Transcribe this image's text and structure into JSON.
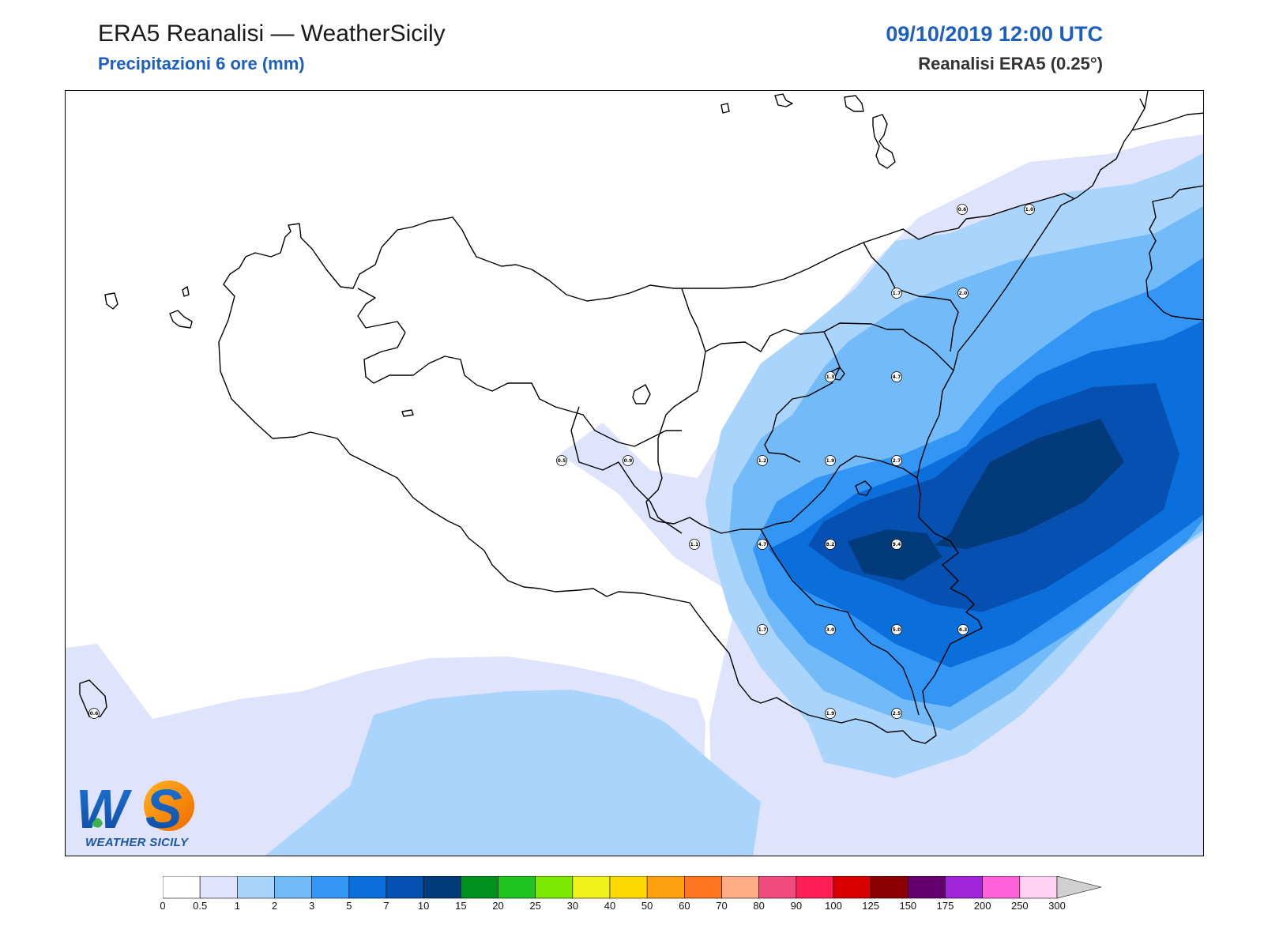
{
  "header": {
    "title": "ERA5 Reanalisi — WeatherSicily",
    "subtitle": "Precipitazioni 6 ore (mm)",
    "datetime": "09/10/2019 12:00 UTC",
    "model": "Reanalisi ERA5 (0.25°)"
  },
  "logo": {
    "letters": "WS",
    "text": "WEATHER SICILY"
  },
  "colorbar": {
    "levels": [
      "0",
      "0.5",
      "1",
      "2",
      "3",
      "5",
      "7",
      "10",
      "15",
      "20",
      "25",
      "30",
      "40",
      "50",
      "60",
      "70",
      "80",
      "90",
      "100",
      "125",
      "150",
      "175",
      "200",
      "250",
      "300"
    ],
    "colors": [
      "#ffffff",
      "#dfe3fb",
      "#a9d4fb",
      "#72baf8",
      "#3396f4",
      "#0a6fdb",
      "#0550b0",
      "#033a79",
      "#00901f",
      "#1fc41f",
      "#7ce800",
      "#f0f21c",
      "#ffda00",
      "#ffa010",
      "#ff7522",
      "#ffac86",
      "#f04b7e",
      "#ff1e55",
      "#d90000",
      "#8b0000",
      "#65006c",
      "#a024da",
      "#ff62d8",
      "#ffd2f5"
    ],
    "extend_color": "#d0d0d0"
  },
  "stations": [
    {
      "value": "0.6"
    },
    {
      "value": "1.0"
    },
    {
      "value": "1.7"
    },
    {
      "value": "2.0"
    },
    {
      "value": "1.3"
    },
    {
      "value": "4.7"
    },
    {
      "value": "0.5"
    },
    {
      "value": "0.9"
    },
    {
      "value": "1.2"
    },
    {
      "value": "1.9"
    },
    {
      "value": "2.7"
    },
    {
      "value": "1.1"
    },
    {
      "value": "4.7"
    },
    {
      "value": "8.2"
    },
    {
      "value": "9.4"
    },
    {
      "value": "1.7"
    },
    {
      "value": "3.0"
    },
    {
      "value": "5.0"
    },
    {
      "value": "4.3"
    },
    {
      "value": "0.6"
    },
    {
      "value": "1.9"
    },
    {
      "value": "2.5"
    }
  ]
}
